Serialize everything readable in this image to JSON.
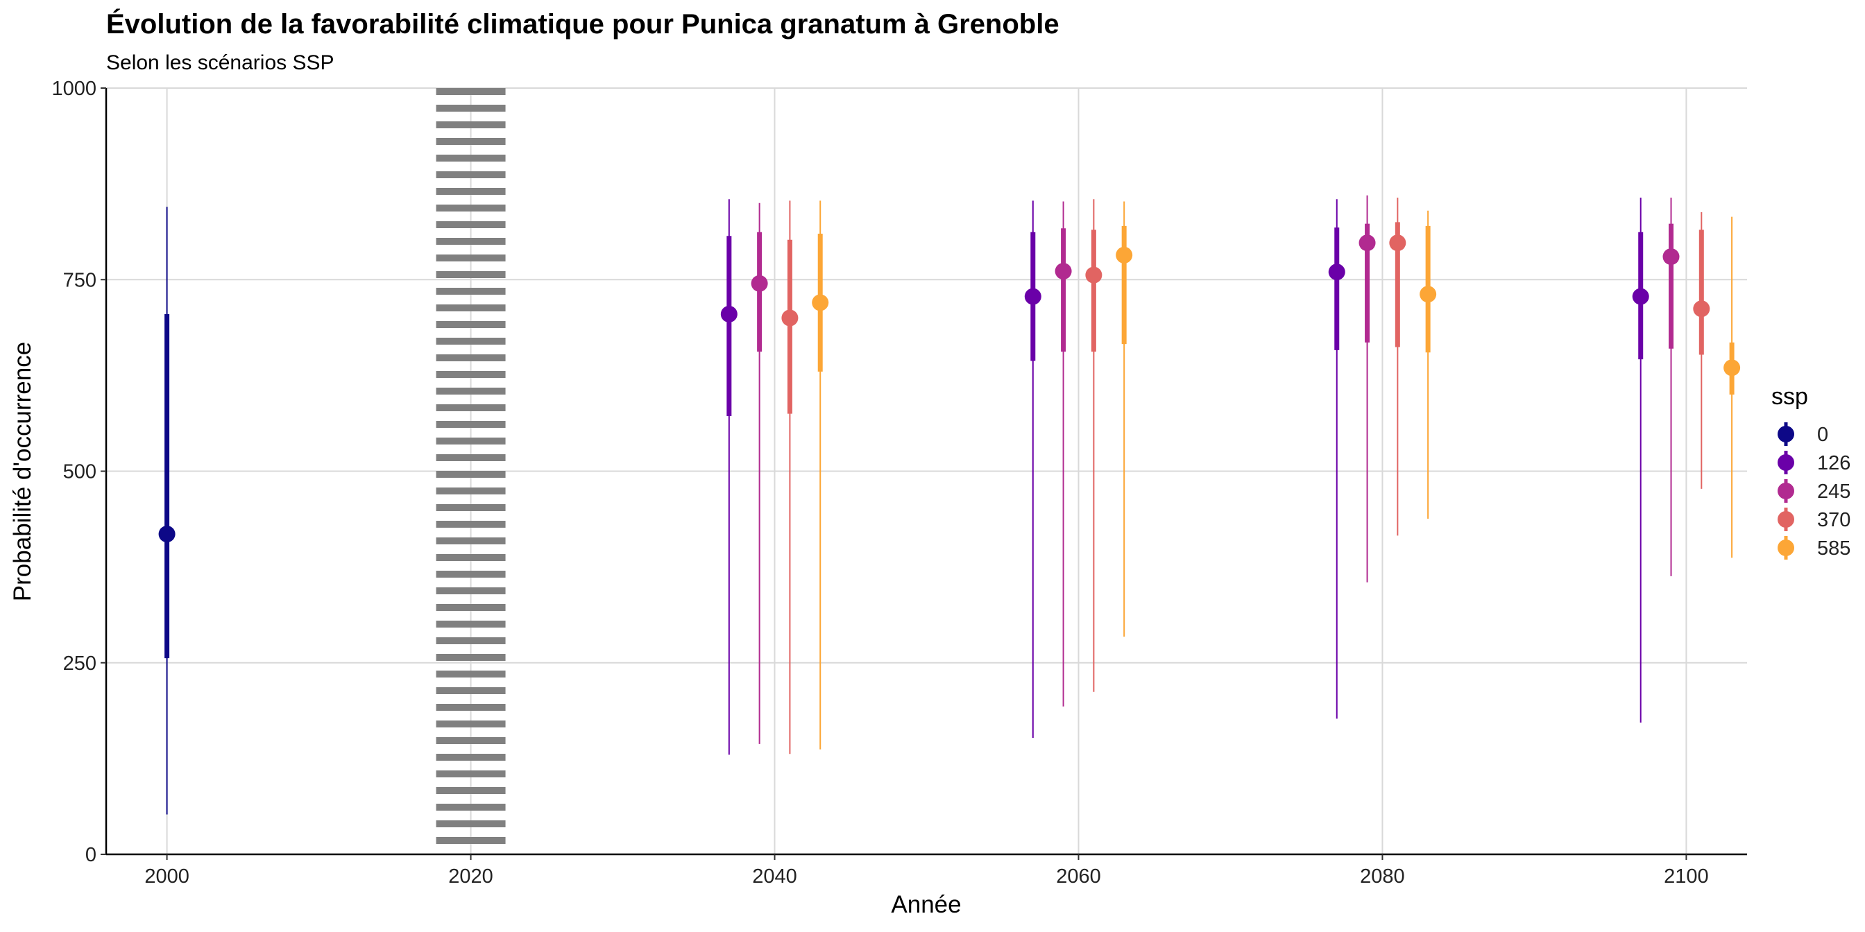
{
  "chart_data": {
    "type": "pointrange",
    "title": "Évolution de la favorabilité climatique pour Punica granatum à Grenoble",
    "subtitle": "Selon les scénarios SSP",
    "xlabel": "Année",
    "ylabel": "Probabilité d'occurrence",
    "xlim": [
      1996,
      2104
    ],
    "ylim": [
      0,
      1000
    ],
    "x_ticks": [
      2000,
      2020,
      2040,
      2060,
      2080,
      2100
    ],
    "y_ticks": [
      0,
      250,
      500,
      750,
      1000
    ],
    "grid": true,
    "reference_line": {
      "x": 2020,
      "style": "dotted",
      "color": "#808080"
    },
    "legend": {
      "title": "ssp",
      "position": "right"
    },
    "series": [
      {
        "name": "0",
        "color": "#0D0887",
        "points": [
          {
            "x": 2000,
            "y": 418,
            "inner": [
              256,
              705
            ],
            "outer": [
              52,
              845
            ]
          }
        ]
      },
      {
        "name": "126",
        "color": "#6A00A8",
        "points": [
          {
            "x": 2037,
            "y": 705,
            "inner": [
              572,
              807
            ],
            "outer": [
              130,
              855
            ]
          },
          {
            "x": 2057,
            "y": 728,
            "inner": [
              644,
              812
            ],
            "outer": [
              152,
              853
            ]
          },
          {
            "x": 2077,
            "y": 760,
            "inner": [
              658,
              818
            ],
            "outer": [
              177,
              855
            ]
          },
          {
            "x": 2097,
            "y": 728,
            "inner": [
              646,
              812
            ],
            "outer": [
              172,
              857
            ]
          }
        ]
      },
      {
        "name": "245",
        "color": "#B12A90",
        "points": [
          {
            "x": 2039,
            "y": 745,
            "inner": [
              656,
              812
            ],
            "outer": [
              144,
              850
            ]
          },
          {
            "x": 2059,
            "y": 761,
            "inner": [
              656,
              817
            ],
            "outer": [
              193,
              852
            ]
          },
          {
            "x": 2079,
            "y": 798,
            "inner": [
              668,
              823
            ],
            "outer": [
              355,
              860
            ]
          },
          {
            "x": 2099,
            "y": 780,
            "inner": [
              660,
              823
            ],
            "outer": [
              363,
              857
            ]
          }
        ]
      },
      {
        "name": "370",
        "color": "#E16462",
        "points": [
          {
            "x": 2041,
            "y": 700,
            "inner": [
              575,
              802
            ],
            "outer": [
              131,
              853
            ]
          },
          {
            "x": 2061,
            "y": 756,
            "inner": [
              656,
              815
            ],
            "outer": [
              212,
              855
            ]
          },
          {
            "x": 2081,
            "y": 798,
            "inner": [
              662,
              825
            ],
            "outer": [
              416,
              857
            ]
          },
          {
            "x": 2101,
            "y": 712,
            "inner": [
              652,
              815
            ],
            "outer": [
              477,
              838
            ]
          }
        ]
      },
      {
        "name": "585",
        "color": "#FCA636",
        "points": [
          {
            "x": 2043,
            "y": 720,
            "inner": [
              630,
              810
            ],
            "outer": [
              137,
              853
            ]
          },
          {
            "x": 2063,
            "y": 782,
            "inner": [
              666,
              820
            ],
            "outer": [
              284,
              852
            ]
          },
          {
            "x": 2083,
            "y": 731,
            "inner": [
              655,
              820
            ],
            "outer": [
              438,
              840
            ]
          },
          {
            "x": 2103,
            "y": 635,
            "inner": [
              600,
              668
            ],
            "outer": [
              387,
              832
            ]
          }
        ]
      }
    ]
  }
}
